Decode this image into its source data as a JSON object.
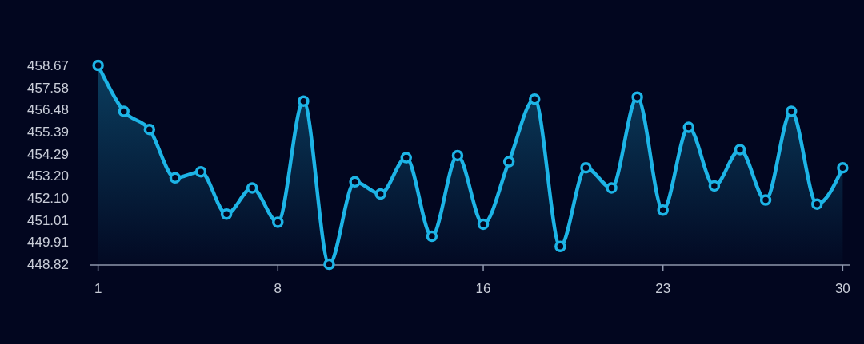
{
  "chart_data": {
    "type": "area",
    "x": [
      1,
      2,
      3,
      4,
      5,
      6,
      7,
      8,
      9,
      10,
      11,
      12,
      13,
      14,
      15,
      16,
      17,
      18,
      19,
      20,
      21,
      22,
      23,
      24,
      25,
      26,
      27,
      28,
      29,
      30
    ],
    "xlim": [
      0.7,
      30.3
    ],
    "xticks": [
      1,
      8,
      16,
      23,
      30
    ],
    "ylim": [
      448.82,
      458.67
    ],
    "yticks": [
      448.82,
      449.91,
      451.01,
      {
        "value": 452.1,
        "label": "452.10"
      },
      {
        "value": 453.2,
        "label": "453.20"
      },
      454.29,
      455.39,
      456.48,
      457.58,
      458.67
    ],
    "marker": "circle",
    "series": [
      {
        "color": "#1db4e6",
        "values": [
          458.67,
          456.4,
          455.5,
          453.1,
          453.4,
          451.3,
          452.6,
          450.9,
          456.9,
          448.82,
          452.9,
          452.3,
          454.1,
          450.2,
          454.2,
          450.8,
          453.9,
          457.0,
          449.7,
          453.6,
          452.6,
          457.1,
          451.5,
          455.6,
          452.7,
          454.5,
          452.0,
          456.4,
          451.8,
          453.6
        ]
      }
    ]
  }
}
